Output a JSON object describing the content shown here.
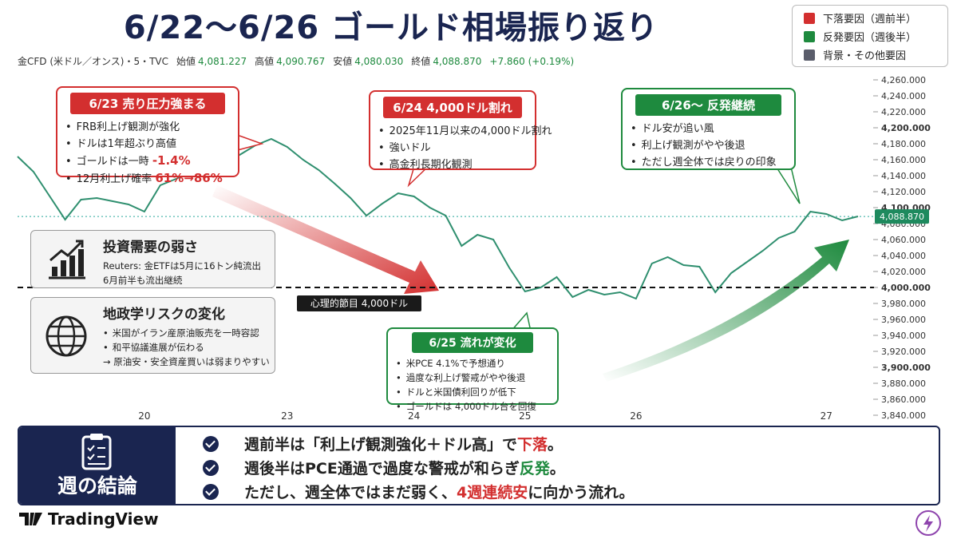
{
  "chart_data": {
    "type": "line",
    "title": "6/22〜6/26 ゴールド相場振り返り",
    "subtitle": "金CFD (米ドル／オンス)・5・TVC",
    "ohlc": [
      {
        "label": "始値",
        "value": "4,081.227"
      },
      {
        "label": "高値",
        "value": "4,090.767"
      },
      {
        "label": "安値",
        "value": "4,080.030"
      },
      {
        "label": "終値",
        "value": "4,088.870"
      }
    ],
    "change": "+7.860 (+0.19%)",
    "categories": [
      null,
      null,
      null,
      null,
      null,
      null,
      null,
      null,
      "20",
      null,
      null,
      null,
      null,
      null,
      null,
      null,
      null,
      "23",
      null,
      null,
      null,
      null,
      null,
      null,
      null,
      "24",
      null,
      null,
      null,
      null,
      null,
      null,
      "25",
      null,
      null,
      null,
      null,
      null,
      null,
      "26",
      null,
      null,
      null,
      null,
      null,
      null,
      null,
      null,
      null,
      null,
      null,
      "27",
      null,
      null
    ],
    "values": [
      4164,
      4145,
      4115,
      4085,
      4110,
      4112,
      4108,
      4104,
      4095,
      4128,
      4136,
      4146,
      4156,
      4162,
      4166,
      4178,
      4186,
      4176,
      4160,
      4147,
      4130,
      4112,
      4090,
      4105,
      4118,
      4114,
      4100,
      4090,
      4052,
      4066,
      4060,
      4025,
      3995,
      4000,
      4013,
      3988,
      3997,
      3991,
      3994,
      3986,
      4030,
      4038,
      4028,
      4026,
      3994,
      4018,
      4032,
      4046,
      4062,
      4070,
      4095,
      4092,
      4084,
      4089
    ],
    "color": "#2f8f6f",
    "ylim": [
      3840,
      4260
    ],
    "yticks": [
      {
        "value": 4260,
        "label": "4,260.000"
      },
      {
        "value": 4240,
        "label": "4,240.000"
      },
      {
        "value": 4220,
        "label": "4,220.000"
      },
      {
        "value": 4200,
        "label": "4,200.000"
      },
      {
        "value": 4180,
        "label": "4,180.000"
      },
      {
        "value": 4160,
        "label": "4,160.000"
      },
      {
        "value": 4140,
        "label": "4,140.000"
      },
      {
        "value": 4120,
        "label": "4,120.000"
      },
      {
        "value": 4100,
        "label": "4,100.000"
      },
      {
        "value": 4080,
        "label": "4,080.000"
      },
      {
        "value": 4060,
        "label": "4,060.000"
      },
      {
        "value": 4040,
        "label": "4,040.000"
      },
      {
        "value": 4020,
        "label": "4,020.000"
      },
      {
        "value": 4000,
        "label": "4,000.000"
      },
      {
        "value": 3980,
        "label": "3,980.000"
      },
      {
        "value": 3960,
        "label": "3,960.000"
      },
      {
        "value": 3940,
        "label": "3,940.000"
      },
      {
        "value": 3920,
        "label": "3,920.000"
      },
      {
        "value": 3900,
        "label": "3,900.000"
      },
      {
        "value": 3880,
        "label": "3,880.000"
      },
      {
        "value": 3860,
        "label": "3,860.000"
      },
      {
        "value": 3840,
        "label": "3,840.000"
      }
    ],
    "last_price": {
      "value": 4088.87,
      "label": "4,088.870"
    },
    "reference_line": {
      "value": 4000,
      "label": "心理的節目 4,000ドル"
    },
    "legend": [
      {
        "label": "下落要因（週前半）",
        "color": "#d32f2f"
      },
      {
        "label": "反発要因（週後半）",
        "color": "#1e8a3e"
      },
      {
        "label": "背景・その他要因",
        "color": "#5a5d6b"
      }
    ],
    "annotations": [
      {
        "title": "6/23 売り圧力強まる",
        "color": "#d32f2f",
        "items": [
          {
            "text": "FRB利上げ観測が強化"
          },
          {
            "text": "ドルは1年超ぶり高値"
          },
          {
            "text": "ゴールドは一時 ",
            "em": "-1.4%"
          },
          {
            "text": "12月利上げ確率 ",
            "em": "61%→86%"
          }
        ]
      },
      {
        "title": "6/24 4,000ドル割れ",
        "color": "#d32f2f",
        "items": [
          {
            "text": "2025年11月以来の4,000ドル割れ"
          },
          {
            "text": "強いドル"
          },
          {
            "text": "高金利長期化観測"
          }
        ]
      },
      {
        "title": "6/26〜 反発継続",
        "color": "#1e8a3e",
        "items": [
          {
            "text": "ドル安が追い風"
          },
          {
            "text": "利上げ観測がやや後退"
          },
          {
            "text": "ただし週全体では戻りの印象"
          }
        ]
      },
      {
        "title": "6/25 流れが変化",
        "color": "#1e8a3e",
        "items": [
          {
            "text": "米PCE 4.1%で予想通り"
          },
          {
            "text": "過度な利上げ警戒がやや後退"
          },
          {
            "text": "ドルと米国債利回りが低下"
          },
          {
            "text": "ゴールドは 4,000ドル台を回復"
          }
        ]
      }
    ]
  },
  "panels": [
    {
      "title": "投資需要の弱さ",
      "lines": [
        "Reuters: 金ETFは5月に16トン純流出",
        "6月前半も流出継続"
      ]
    },
    {
      "title": "地政学リスクの変化",
      "lines": [
        "米国がイラン産原油販売を一時容認",
        "和平協議進展が伝わる",
        "→ 原油安・安全資産買いは弱まりやすい"
      ]
    }
  ],
  "conclusion": {
    "title": "週の結論",
    "items": [
      {
        "pre": "週前半は「利上げ観測強化＋ドル高」で",
        "em": "下落",
        "post": "。",
        "color": "#d32f2f"
      },
      {
        "pre": "週後半はPCE通過で過度な警戒が和らぎ",
        "em": "反発",
        "post": "。",
        "color": "#1e8a3e"
      },
      {
        "pre": "ただし、週全体ではまだ弱く、",
        "em": "4週連続安",
        "post": "に向かう流れ。",
        "color": "#d32f2f"
      }
    ]
  },
  "footer": {
    "brand": "TradingView"
  }
}
